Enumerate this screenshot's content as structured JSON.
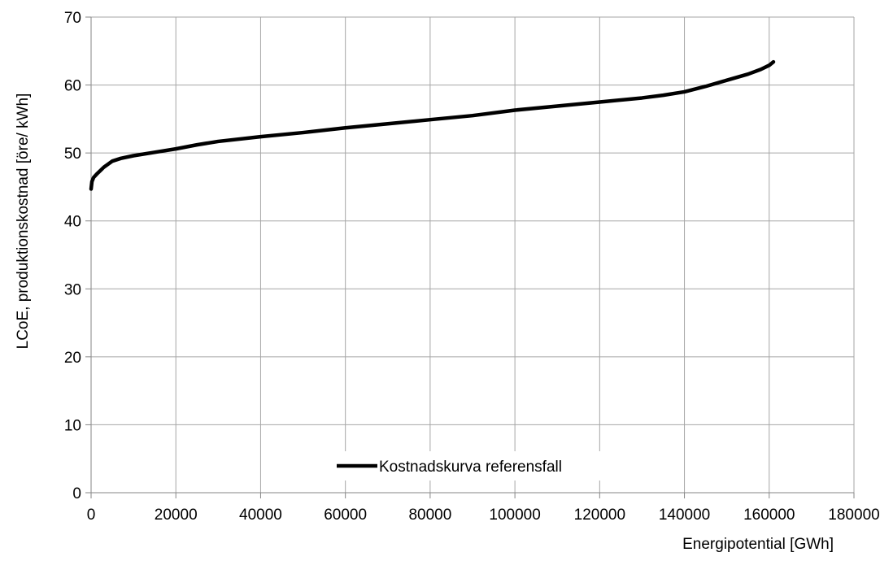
{
  "chart_data": {
    "type": "line",
    "xlabel": "Energipotential [GWh]",
    "ylabel": "LCoE, produktionskostnad [öre/ kWh]",
    "xlim": [
      0,
      180000
    ],
    "ylim": [
      0,
      70
    ],
    "x_ticks": [
      0,
      20000,
      40000,
      60000,
      80000,
      100000,
      120000,
      140000,
      160000,
      180000
    ],
    "y_ticks": [
      0,
      10,
      20,
      30,
      40,
      50,
      60,
      70
    ],
    "grid": true,
    "legend_position": "bottom-center",
    "series": [
      {
        "name": "Kostnadskurva referensfall",
        "color": "#000000",
        "x": [
          0,
          200,
          600,
          1500,
          3000,
          5000,
          7000,
          10000,
          15000,
          20000,
          25000,
          30000,
          40000,
          50000,
          60000,
          70000,
          80000,
          90000,
          100000,
          110000,
          120000,
          130000,
          135000,
          140000,
          145000,
          150000,
          155000,
          158000,
          160000,
          161000
        ],
        "y": [
          44.7,
          45.8,
          46.4,
          47.0,
          47.9,
          48.8,
          49.2,
          49.6,
          50.1,
          50.6,
          51.2,
          51.7,
          52.4,
          53.0,
          53.7,
          54.3,
          54.9,
          55.5,
          56.3,
          56.9,
          57.5,
          58.1,
          58.5,
          59.0,
          59.8,
          60.7,
          61.6,
          62.3,
          62.9,
          63.4
        ]
      }
    ]
  }
}
